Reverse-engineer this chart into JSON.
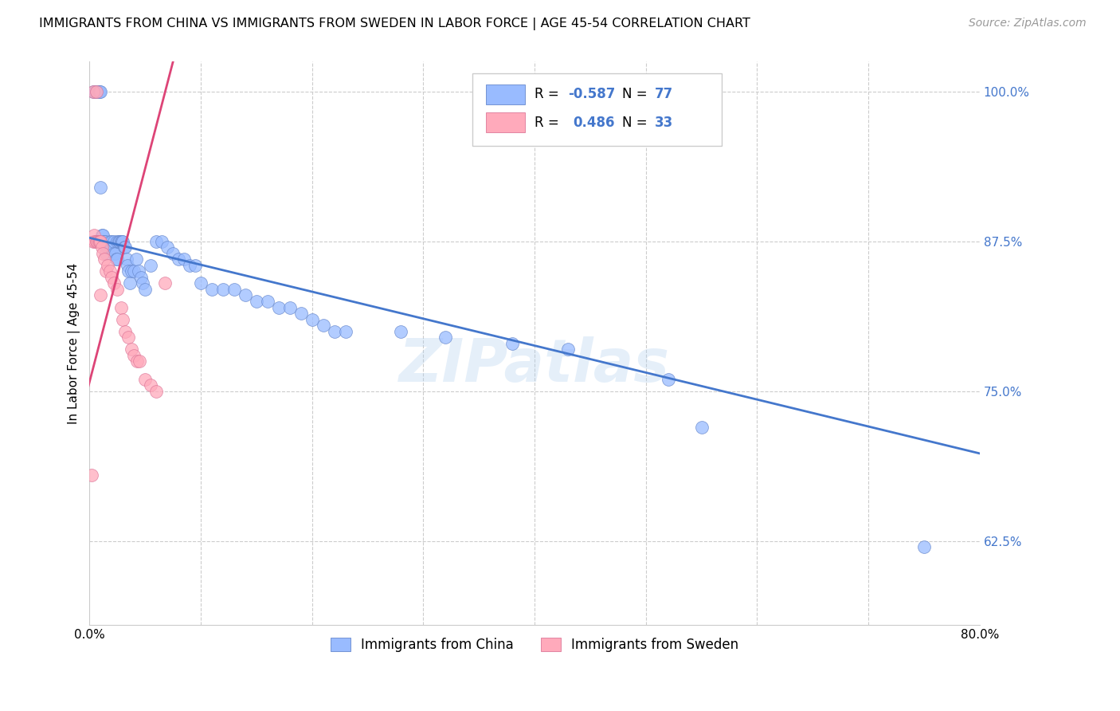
{
  "title": "IMMIGRANTS FROM CHINA VS IMMIGRANTS FROM SWEDEN IN LABOR FORCE | AGE 45-54 CORRELATION CHART",
  "source": "Source: ZipAtlas.com",
  "ylabel": "In Labor Force | Age 45-54",
  "xlim": [
    0.0,
    0.8
  ],
  "ylim": [
    0.555,
    1.025
  ],
  "xticks": [
    0.0,
    0.1,
    0.2,
    0.3,
    0.4,
    0.5,
    0.6,
    0.7,
    0.8
  ],
  "xticklabels": [
    "0.0%",
    "",
    "",
    "",
    "",
    "",
    "",
    "",
    "80.0%"
  ],
  "yticks": [
    0.625,
    0.75,
    0.875,
    1.0
  ],
  "yticklabels": [
    "62.5%",
    "75.0%",
    "87.5%",
    "100.0%"
  ],
  "grid_color": "#cccccc",
  "blue_scatter_color": "#99bbff",
  "pink_scatter_color": "#ffaabb",
  "blue_edge_color": "#6688cc",
  "pink_edge_color": "#dd7799",
  "blue_line_color": "#4477cc",
  "pink_line_color": "#dd4477",
  "legend_R1": "-0.587",
  "legend_N1": "77",
  "legend_R2": "0.486",
  "legend_N2": "33",
  "watermark": "ZIPatlas",
  "blue_trend_x": [
    0.0,
    0.8
  ],
  "blue_trend_y": [
    0.878,
    0.698
  ],
  "pink_trend_x": [
    -0.005,
    0.075
  ],
  "pink_trend_y": [
    0.74,
    1.025
  ],
  "china_x": [
    0.003,
    0.005,
    0.006,
    0.007,
    0.008,
    0.009,
    0.01,
    0.01,
    0.011,
    0.012,
    0.012,
    0.013,
    0.014,
    0.015,
    0.015,
    0.016,
    0.017,
    0.018,
    0.018,
    0.019,
    0.02,
    0.02,
    0.021,
    0.022,
    0.022,
    0.023,
    0.024,
    0.025,
    0.025,
    0.026,
    0.027,
    0.028,
    0.029,
    0.03,
    0.031,
    0.032,
    0.033,
    0.034,
    0.035,
    0.036,
    0.038,
    0.04,
    0.042,
    0.044,
    0.046,
    0.048,
    0.05,
    0.055,
    0.06,
    0.065,
    0.07,
    0.075,
    0.08,
    0.085,
    0.09,
    0.095,
    0.1,
    0.11,
    0.12,
    0.13,
    0.14,
    0.15,
    0.16,
    0.17,
    0.18,
    0.19,
    0.2,
    0.21,
    0.22,
    0.23,
    0.28,
    0.32,
    0.38,
    0.43,
    0.52,
    0.55,
    0.75
  ],
  "china_y": [
    1.0,
    1.0,
    1.0,
    1.0,
    1.0,
    1.0,
    1.0,
    0.92,
    0.88,
    0.88,
    0.875,
    0.875,
    0.875,
    0.87,
    0.865,
    0.87,
    0.87,
    0.875,
    0.87,
    0.87,
    0.875,
    0.87,
    0.87,
    0.875,
    0.865,
    0.865,
    0.86,
    0.86,
    0.875,
    0.875,
    0.875,
    0.875,
    0.875,
    0.875,
    0.87,
    0.87,
    0.86,
    0.855,
    0.85,
    0.84,
    0.85,
    0.85,
    0.86,
    0.85,
    0.845,
    0.84,
    0.835,
    0.855,
    0.875,
    0.875,
    0.87,
    0.865,
    0.86,
    0.86,
    0.855,
    0.855,
    0.84,
    0.835,
    0.835,
    0.835,
    0.83,
    0.825,
    0.825,
    0.82,
    0.82,
    0.815,
    0.81,
    0.805,
    0.8,
    0.8,
    0.8,
    0.795,
    0.79,
    0.785,
    0.76,
    0.72,
    0.62
  ],
  "sweden_x": [
    0.002,
    0.003,
    0.004,
    0.005,
    0.006,
    0.007,
    0.008,
    0.009,
    0.01,
    0.011,
    0.012,
    0.013,
    0.015,
    0.016,
    0.018,
    0.02,
    0.022,
    0.025,
    0.028,
    0.03,
    0.032,
    0.035,
    0.038,
    0.04,
    0.043,
    0.045,
    0.05,
    0.055,
    0.06,
    0.068,
    0.003,
    0.006,
    0.01
  ],
  "sweden_y": [
    0.68,
    0.875,
    0.88,
    0.875,
    0.875,
    0.875,
    0.875,
    0.875,
    0.875,
    0.87,
    0.865,
    0.86,
    0.85,
    0.855,
    0.85,
    0.845,
    0.84,
    0.835,
    0.82,
    0.81,
    0.8,
    0.795,
    0.785,
    0.78,
    0.775,
    0.775,
    0.76,
    0.755,
    0.75,
    0.84,
    1.0,
    1.0,
    0.83
  ]
}
